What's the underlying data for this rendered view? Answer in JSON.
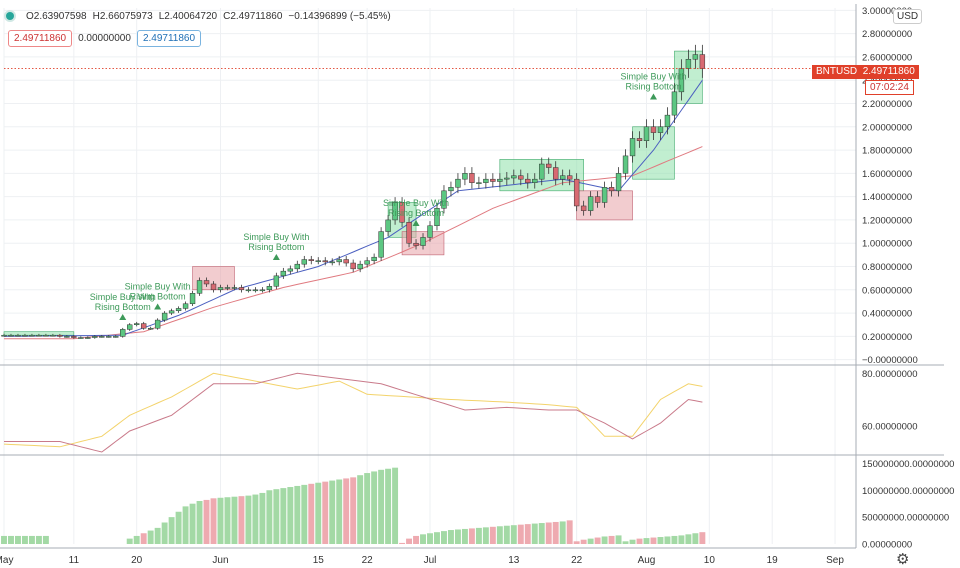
{
  "header": {
    "open": "O2.63907598",
    "high": "H2.66075973",
    "low": "L2.40064720",
    "close": "C2.49711860",
    "change": "−0.14396899 (−5.45%)",
    "input_1": "2.49711860",
    "input_2": "0.00000000",
    "input_3": "2.49711860",
    "currency_button": "USD"
  },
  "price_tag": {
    "symbol_label": "BNTUSD",
    "value": "2.49711860",
    "countdown": "07:02:24"
  },
  "colors": {
    "up": "#5cc782",
    "down": "#d86a72",
    "up_zone": "#8ee0aa",
    "down_zone": "#e8a2a8",
    "ma_blue": "#4b5fc0",
    "ma_red": "#e07a80",
    "osc_yellow": "#f3d36b",
    "osc_red": "#c97a8a",
    "volume_up": "#a3d9a5",
    "volume_down": "#eeaab0",
    "annotation": "#3e9a5a",
    "last_price": "#e0402a"
  },
  "chart_data": {
    "type": "candlestick",
    "price_axis": {
      "ylim": [
        -0.02,
        3.02
      ],
      "ticks": [
        "3.00000000",
        "2.80000000",
        "2.60000000",
        "2.40000000",
        "2.20000000",
        "2.00000000",
        "1.80000000",
        "1.60000000",
        "1.40000000",
        "1.20000000",
        "1.00000000",
        "0.80000000",
        "0.60000000",
        "0.40000000",
        "0.20000000",
        "−0.00000000"
      ]
    },
    "oscillator_axis": {
      "ylim": [
        50,
        82
      ],
      "ticks": [
        "80.00000000",
        "60.00000000"
      ]
    },
    "volume_axis": {
      "ylim": [
        0,
        160000000
      ],
      "ticks": [
        "150000000.00000000",
        "100000000.00000000",
        "50000000.00000000",
        "0.00000000"
      ]
    },
    "x_labels": [
      "May",
      "11",
      "20",
      "Jun",
      "15",
      "22",
      "Jul",
      "13",
      "22",
      "Aug",
      "10",
      "19",
      "Sep"
    ],
    "x_label_days": [
      0,
      10,
      19,
      31,
      45,
      52,
      61,
      73,
      82,
      92,
      101,
      110,
      119
    ],
    "last_day": 100,
    "candles_close": [
      0.21,
      0.21,
      0.21,
      0.21,
      0.21,
      0.21,
      0.21,
      0.21,
      0.2,
      0.2,
      0.19,
      0.19,
      0.19,
      0.2,
      0.2,
      0.2,
      0.2,
      0.26,
      0.3,
      0.31,
      0.27,
      0.27,
      0.34,
      0.4,
      0.42,
      0.44,
      0.48,
      0.57,
      0.68,
      0.65,
      0.6,
      0.62,
      0.62,
      0.62,
      0.6,
      0.6,
      0.6,
      0.6,
      0.63,
      0.72,
      0.76,
      0.78,
      0.82,
      0.86,
      0.85,
      0.85,
      0.84,
      0.84,
      0.86,
      0.83,
      0.78,
      0.82,
      0.85,
      0.88,
      1.1,
      1.2,
      1.35,
      1.18,
      1.0,
      0.98,
      1.05,
      1.15,
      1.3,
      1.45,
      1.48,
      1.55,
      1.6,
      1.52,
      1.52,
      1.55,
      1.53,
      1.55,
      1.56,
      1.58,
      1.55,
      1.52,
      1.55,
      1.68,
      1.65,
      1.55,
      1.58,
      1.55,
      1.32,
      1.28,
      1.4,
      1.35,
      1.48,
      1.45,
      1.6,
      1.75,
      1.9,
      1.88,
      2.0,
      1.95,
      2.0,
      2.1,
      2.3,
      2.5,
      2.58,
      2.62,
      2.5
    ],
    "ma_fast_anchors": [
      [
        0,
        0.2
      ],
      [
        17,
        0.21
      ],
      [
        25,
        0.38
      ],
      [
        33,
        0.6
      ],
      [
        45,
        0.8
      ],
      [
        55,
        1.05
      ],
      [
        65,
        1.45
      ],
      [
        80,
        1.55
      ],
      [
        88,
        1.45
      ],
      [
        93,
        1.8
      ],
      [
        100,
        2.4
      ]
    ],
    "ma_slow_anchors": [
      [
        0,
        0.18
      ],
      [
        10,
        0.18
      ],
      [
        20,
        0.24
      ],
      [
        30,
        0.45
      ],
      [
        40,
        0.62
      ],
      [
        50,
        0.75
      ],
      [
        60,
        1.0
      ],
      [
        70,
        1.3
      ],
      [
        80,
        1.52
      ],
      [
        90,
        1.58
      ],
      [
        100,
        1.83
      ]
    ],
    "oscillator_yellow": [
      [
        0,
        53
      ],
      [
        8,
        52
      ],
      [
        14,
        56
      ],
      [
        18,
        64
      ],
      [
        24,
        71
      ],
      [
        30,
        80
      ],
      [
        36,
        77
      ],
      [
        42,
        74
      ],
      [
        48,
        77
      ],
      [
        52,
        72
      ],
      [
        58,
        71
      ],
      [
        64,
        70
      ],
      [
        72,
        69
      ],
      [
        78,
        68
      ],
      [
        82,
        67
      ],
      [
        86,
        56
      ],
      [
        90,
        56
      ],
      [
        94,
        70
      ],
      [
        98,
        76
      ],
      [
        100,
        75
      ]
    ],
    "oscillator_red": [
      [
        0,
        54
      ],
      [
        8,
        54
      ],
      [
        14,
        50
      ],
      [
        18,
        58
      ],
      [
        24,
        64
      ],
      [
        30,
        76
      ],
      [
        36,
        76
      ],
      [
        42,
        80
      ],
      [
        48,
        78
      ],
      [
        54,
        76
      ],
      [
        60,
        71
      ],
      [
        66,
        66
      ],
      [
        72,
        67
      ],
      [
        78,
        66
      ],
      [
        82,
        66
      ],
      [
        86,
        61
      ],
      [
        90,
        55
      ],
      [
        94,
        61
      ],
      [
        98,
        70
      ],
      [
        100,
        69
      ]
    ],
    "volume": [
      15000000,
      15000000,
      15000000,
      15000000,
      15000000,
      15000000,
      15000000,
      0,
      0,
      0,
      0,
      0,
      0,
      0,
      0,
      0,
      0,
      0,
      10000000,
      15000000,
      20000000,
      25000000,
      30000000,
      40000000,
      50000000,
      60000000,
      70000000,
      75000000,
      80000000,
      82000000,
      85000000,
      86000000,
      87000000,
      88000000,
      89000000,
      90000000,
      92000000,
      95000000,
      100000000,
      102000000,
      104000000,
      106000000,
      108000000,
      110000000,
      112000000,
      114000000,
      116000000,
      118000000,
      120000000,
      122000000,
      124000000,
      128000000,
      132000000,
      135000000,
      138000000,
      140000000,
      142000000,
      2000000,
      10000000,
      15000000,
      18000000,
      20000000,
      22000000,
      24000000,
      26000000,
      27000000,
      28000000,
      29000000,
      30000000,
      31000000,
      32000000,
      33000000,
      34000000,
      35000000,
      36000000,
      37000000,
      38000000,
      39000000,
      40000000,
      41000000,
      42000000,
      44000000,
      5000000,
      8000000,
      10000000,
      12000000,
      14000000,
      15000000,
      16000000,
      5000000,
      8000000,
      10000000,
      11000000,
      12000000,
      13000000,
      14000000,
      15000000,
      16000000,
      18000000,
      20000000,
      22000000
    ],
    "annotations": [
      {
        "label": "Simple Buy With\nRising Bottom",
        "day": 17
      },
      {
        "label": "Simple Buy With\nRising Bottom",
        "day": 22
      },
      {
        "label": "Simple Buy With\nRising Bottom",
        "day": 39
      },
      {
        "label": "Simple Buy With\nRising Bottom",
        "day": 59
      },
      {
        "label": "Simple Buy With\nRising Bottom",
        "day": 93
      }
    ],
    "zones": [
      {
        "from": 0,
        "to": 10,
        "low": 0.21,
        "high": 0.24,
        "kind": "up"
      },
      {
        "from": 27,
        "to": 33,
        "low": 0.6,
        "high": 0.8,
        "kind": "down"
      },
      {
        "from": 55,
        "to": 59,
        "low": 1.05,
        "high": 1.35,
        "kind": "up"
      },
      {
        "from": 57,
        "to": 63,
        "low": 0.9,
        "high": 1.1,
        "kind": "down"
      },
      {
        "from": 71,
        "to": 83,
        "low": 1.45,
        "high": 1.72,
        "kind": "up"
      },
      {
        "from": 82,
        "to": 90,
        "low": 1.2,
        "high": 1.45,
        "kind": "down"
      },
      {
        "from": 90,
        "to": 96,
        "low": 1.55,
        "high": 2.0,
        "kind": "up"
      },
      {
        "from": 96,
        "to": 100,
        "low": 2.2,
        "high": 2.65,
        "kind": "up"
      }
    ]
  }
}
